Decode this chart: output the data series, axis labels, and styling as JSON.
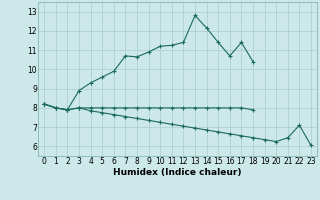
{
  "title": "",
  "xlabel": "Humidex (Indice chaleur)",
  "background_color": "#cce8e8",
  "grid_color": "#aacccc",
  "line_color": "#1a6b5a",
  "x_values": [
    0,
    1,
    2,
    3,
    4,
    5,
    6,
    7,
    8,
    9,
    10,
    11,
    12,
    13,
    14,
    15,
    16,
    17,
    18,
    19,
    20,
    21,
    22,
    23
  ],
  "line_main": [
    8.2,
    8.0,
    7.9,
    8.9,
    9.3,
    9.6,
    9.9,
    10.7,
    10.65,
    10.9,
    11.2,
    11.25,
    11.4,
    12.8,
    12.15,
    11.4,
    10.7,
    11.4,
    10.4,
    null,
    null,
    null,
    null,
    null
  ],
  "line_flat": [
    8.2,
    8.0,
    7.9,
    8.0,
    8.0,
    8.0,
    8.0,
    8.0,
    8.0,
    8.0,
    8.0,
    8.0,
    8.0,
    8.0,
    8.0,
    8.0,
    8.0,
    8.0,
    7.9,
    null,
    null,
    null,
    null,
    null
  ],
  "line_down": [
    8.2,
    8.0,
    7.9,
    8.0,
    7.85,
    7.75,
    7.65,
    7.55,
    7.45,
    7.35,
    7.25,
    7.15,
    7.05,
    6.95,
    6.85,
    6.75,
    6.65,
    6.55,
    6.45,
    6.35,
    6.25,
    6.45,
    7.1,
    6.05
  ],
  "xlim": [
    -0.5,
    23.5
  ],
  "ylim": [
    5.5,
    13.5
  ],
  "yticks": [
    6,
    7,
    8,
    9,
    10,
    11,
    12,
    13
  ],
  "xticks": [
    0,
    1,
    2,
    3,
    4,
    5,
    6,
    7,
    8,
    9,
    10,
    11,
    12,
    13,
    14,
    15,
    16,
    17,
    18,
    19,
    20,
    21,
    22,
    23
  ],
  "tick_fontsize": 5.5,
  "xlabel_fontsize": 6.5
}
